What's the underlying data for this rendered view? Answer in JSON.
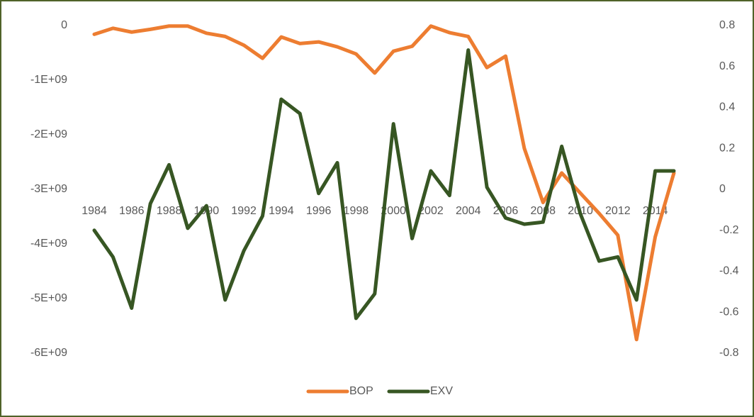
{
  "chart_data": {
    "type": "line",
    "categories": [
      "1984",
      null,
      "1986",
      null,
      "1988",
      null,
      "1990",
      null,
      "1992",
      null,
      "1994",
      null,
      "1996",
      null,
      "1998",
      null,
      "2000",
      null,
      "2002",
      null,
      "2004",
      null,
      "2006",
      null,
      "2008",
      null,
      "2010",
      null,
      "2012",
      null,
      "2014",
      null
    ],
    "series": [
      {
        "name": "BOP",
        "color": "#ed7d31",
        "axis": "y",
        "values": [
          -160000000,
          -50000000,
          -120000000,
          -70000000,
          -10000000,
          -10000000,
          -140000000,
          -200000000,
          -360000000,
          -600000000,
          -210000000,
          -330000000,
          -300000000,
          -390000000,
          -520000000,
          -870000000,
          -470000000,
          -380000000,
          -10000000,
          -130000000,
          -200000000,
          -770000000,
          -560000000,
          -2250000000,
          -3240000000,
          -2700000000,
          -3070000000,
          -3440000000,
          -3840000000,
          -5750000000,
          -3870000000,
          -2700000000
        ]
      },
      {
        "name": "EXV",
        "color": "#375623",
        "axis": "y2",
        "values": [
          -0.2,
          -0.33,
          -0.58,
          -0.07,
          0.12,
          -0.19,
          -0.08,
          -0.54,
          -0.3,
          -0.13,
          0.44,
          0.37,
          -0.02,
          0.13,
          -0.63,
          -0.51,
          0.32,
          -0.24,
          0.09,
          -0.03,
          0.68,
          0.01,
          -0.14,
          -0.17,
          -0.16,
          0.21,
          -0.12,
          -0.35,
          -0.33,
          -0.54,
          0.09,
          0.09
        ]
      }
    ],
    "ylim": [
      -6000000000,
      0
    ],
    "yticks": [
      {
        "value": 0,
        "label": "0"
      },
      {
        "value": -1000000000,
        "label": "-1E+09"
      },
      {
        "value": -2000000000,
        "label": "-2E+09"
      },
      {
        "value": -3000000000,
        "label": "-3E+09"
      },
      {
        "value": -4000000000,
        "label": "-4E+09"
      },
      {
        "value": -5000000000,
        "label": "-5E+09"
      },
      {
        "value": -6000000000,
        "label": "-6E+09"
      }
    ],
    "y2lim": [
      -0.8,
      0.8
    ],
    "y2ticks": [
      0.8,
      0.6,
      0.4,
      0.2,
      0,
      -0.2,
      -0.4,
      -0.6,
      -0.8
    ],
    "legend": "bottom"
  }
}
